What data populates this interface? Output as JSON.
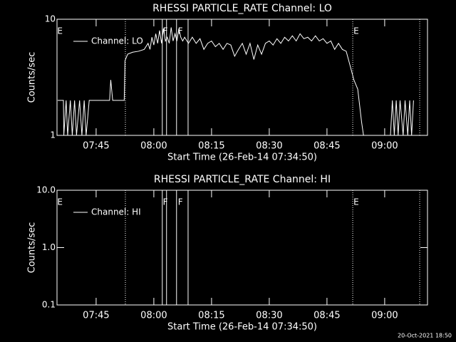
{
  "chart_data": [
    {
      "type": "line",
      "title": "RHESSI PARTICLE_RATE Channel: LO",
      "xlabel": "Start Time (26-Feb-14 07:34:50)",
      "ylabel": "Counts/sec",
      "log_y": true,
      "ylim": [
        1,
        10
      ],
      "yticks": [
        1,
        10
      ],
      "xlim": [
        454.83,
        551.13
      ],
      "xticks": [
        {
          "value": 465,
          "label": "07:45"
        },
        {
          "value": 480,
          "label": "08:00"
        },
        {
          "value": 495,
          "label": "08:15"
        },
        {
          "value": 510,
          "label": "08:30"
        },
        {
          "value": 525,
          "label": "08:45"
        },
        {
          "value": 540,
          "label": "09:00"
        }
      ],
      "legend": "upper left",
      "series": [
        {
          "name": "Channel: LO",
          "color": "#ffffff",
          "x": [
            455.0,
            456.5,
            456.6,
            457.2,
            457.6,
            458.3,
            458.8,
            459.4,
            459.9,
            460.7,
            461.3,
            461.9,
            462.4,
            463.2,
            468.5,
            468.8,
            469.3,
            472.3,
            472.5,
            473.2,
            474.5,
            476,
            477.5,
            478.5,
            479,
            479.5,
            480,
            480.5,
            481,
            481.5,
            482,
            482.5,
            483,
            483.5,
            484,
            484.5,
            485,
            485.5,
            486,
            486.5,
            487,
            487.5,
            488,
            489,
            490,
            491,
            492,
            493,
            494,
            495,
            496,
            497,
            498,
            499,
            500,
            501,
            502,
            503,
            504,
            505,
            506,
            507,
            508,
            509,
            510,
            511,
            512,
            513,
            514,
            515,
            516,
            517,
            518,
            519,
            520,
            521,
            522,
            523,
            524,
            525,
            526,
            527,
            528,
            529,
            530,
            531,
            532,
            533,
            534,
            534.5,
            541.5,
            542,
            542.5,
            543,
            543.5,
            544,
            544.8,
            545.3,
            546,
            546.5,
            547,
            547.5
          ],
          "values": [
            2,
            2,
            1,
            2,
            1,
            2,
            1,
            2,
            1,
            2,
            1,
            2,
            1,
            2,
            2,
            3,
            2,
            2,
            4.4,
            5,
            5.2,
            5.3,
            5.5,
            6.2,
            5.5,
            7,
            6,
            7.5,
            6.2,
            8,
            6.2,
            8.3,
            6.5,
            7,
            6.2,
            8.5,
            6.5,
            7.5,
            6.5,
            8.3,
            7,
            6.5,
            7,
            6.2,
            7,
            6.2,
            6.8,
            5.5,
            6.2,
            6.5,
            5.8,
            6.2,
            5.5,
            6.2,
            6,
            4.8,
            5.5,
            6.2,
            5,
            6.2,
            4.5,
            6,
            5,
            6.2,
            6.5,
            6,
            6.8,
            6.2,
            7,
            6.5,
            7.2,
            6.5,
            7.5,
            6.8,
            7,
            6.5,
            7.2,
            6.5,
            6.8,
            6.2,
            6.5,
            5.5,
            6.2,
            5.5,
            5.3,
            4,
            3,
            2.5,
            1.3,
            1,
            1,
            2,
            1,
            2,
            1,
            2,
            1,
            2,
            1,
            2,
            1,
            2
          ]
        }
      ],
      "solid_lines": [
        482.2,
        483.3,
        485.9,
        488.9
      ],
      "dotted_lines": [
        472.6,
        531.7,
        549.1
      ],
      "flags": [
        {
          "label": "E",
          "x": 455.6
        },
        {
          "label": "F",
          "x": 483.0
        },
        {
          "label": "F",
          "x": 486.9
        },
        {
          "label": "E",
          "x": 532.6
        }
      ]
    },
    {
      "type": "line",
      "title": "RHESSI PARTICLE_RATE Channel: HI",
      "xlabel": "Start Time (26-Feb-14 07:34:50)",
      "ylabel": "Counts/sec",
      "log_y": true,
      "ylim": [
        0.1,
        10
      ],
      "yticks": [
        {
          "value": 0.1,
          "label": "0.1"
        },
        {
          "value": 1,
          "label": "1.0"
        },
        {
          "value": 10,
          "label": "10.0"
        }
      ],
      "xlim": [
        454.83,
        551.13
      ],
      "xticks": [
        {
          "value": 465,
          "label": "07:45"
        },
        {
          "value": 480,
          "label": "08:00"
        },
        {
          "value": 495,
          "label": "08:15"
        },
        {
          "value": 510,
          "label": "08:30"
        },
        {
          "value": 525,
          "label": "08:45"
        },
        {
          "value": 540,
          "label": "09:00"
        }
      ],
      "legend": "upper left",
      "series": [
        {
          "name": "Channel: HI",
          "color": "#ffffff",
          "x": [],
          "values": []
        }
      ],
      "solid_lines": [
        482.2,
        483.3,
        485.9,
        488.9
      ],
      "dotted_lines": [
        472.6,
        531.7,
        549.1
      ],
      "flags": [
        {
          "label": "E",
          "x": 455.6
        },
        {
          "label": "F",
          "x": 483.0
        },
        {
          "label": "F",
          "x": 486.9
        },
        {
          "label": "E",
          "x": 532.6
        }
      ]
    }
  ],
  "footer": "20-Oct-2021 18:50"
}
